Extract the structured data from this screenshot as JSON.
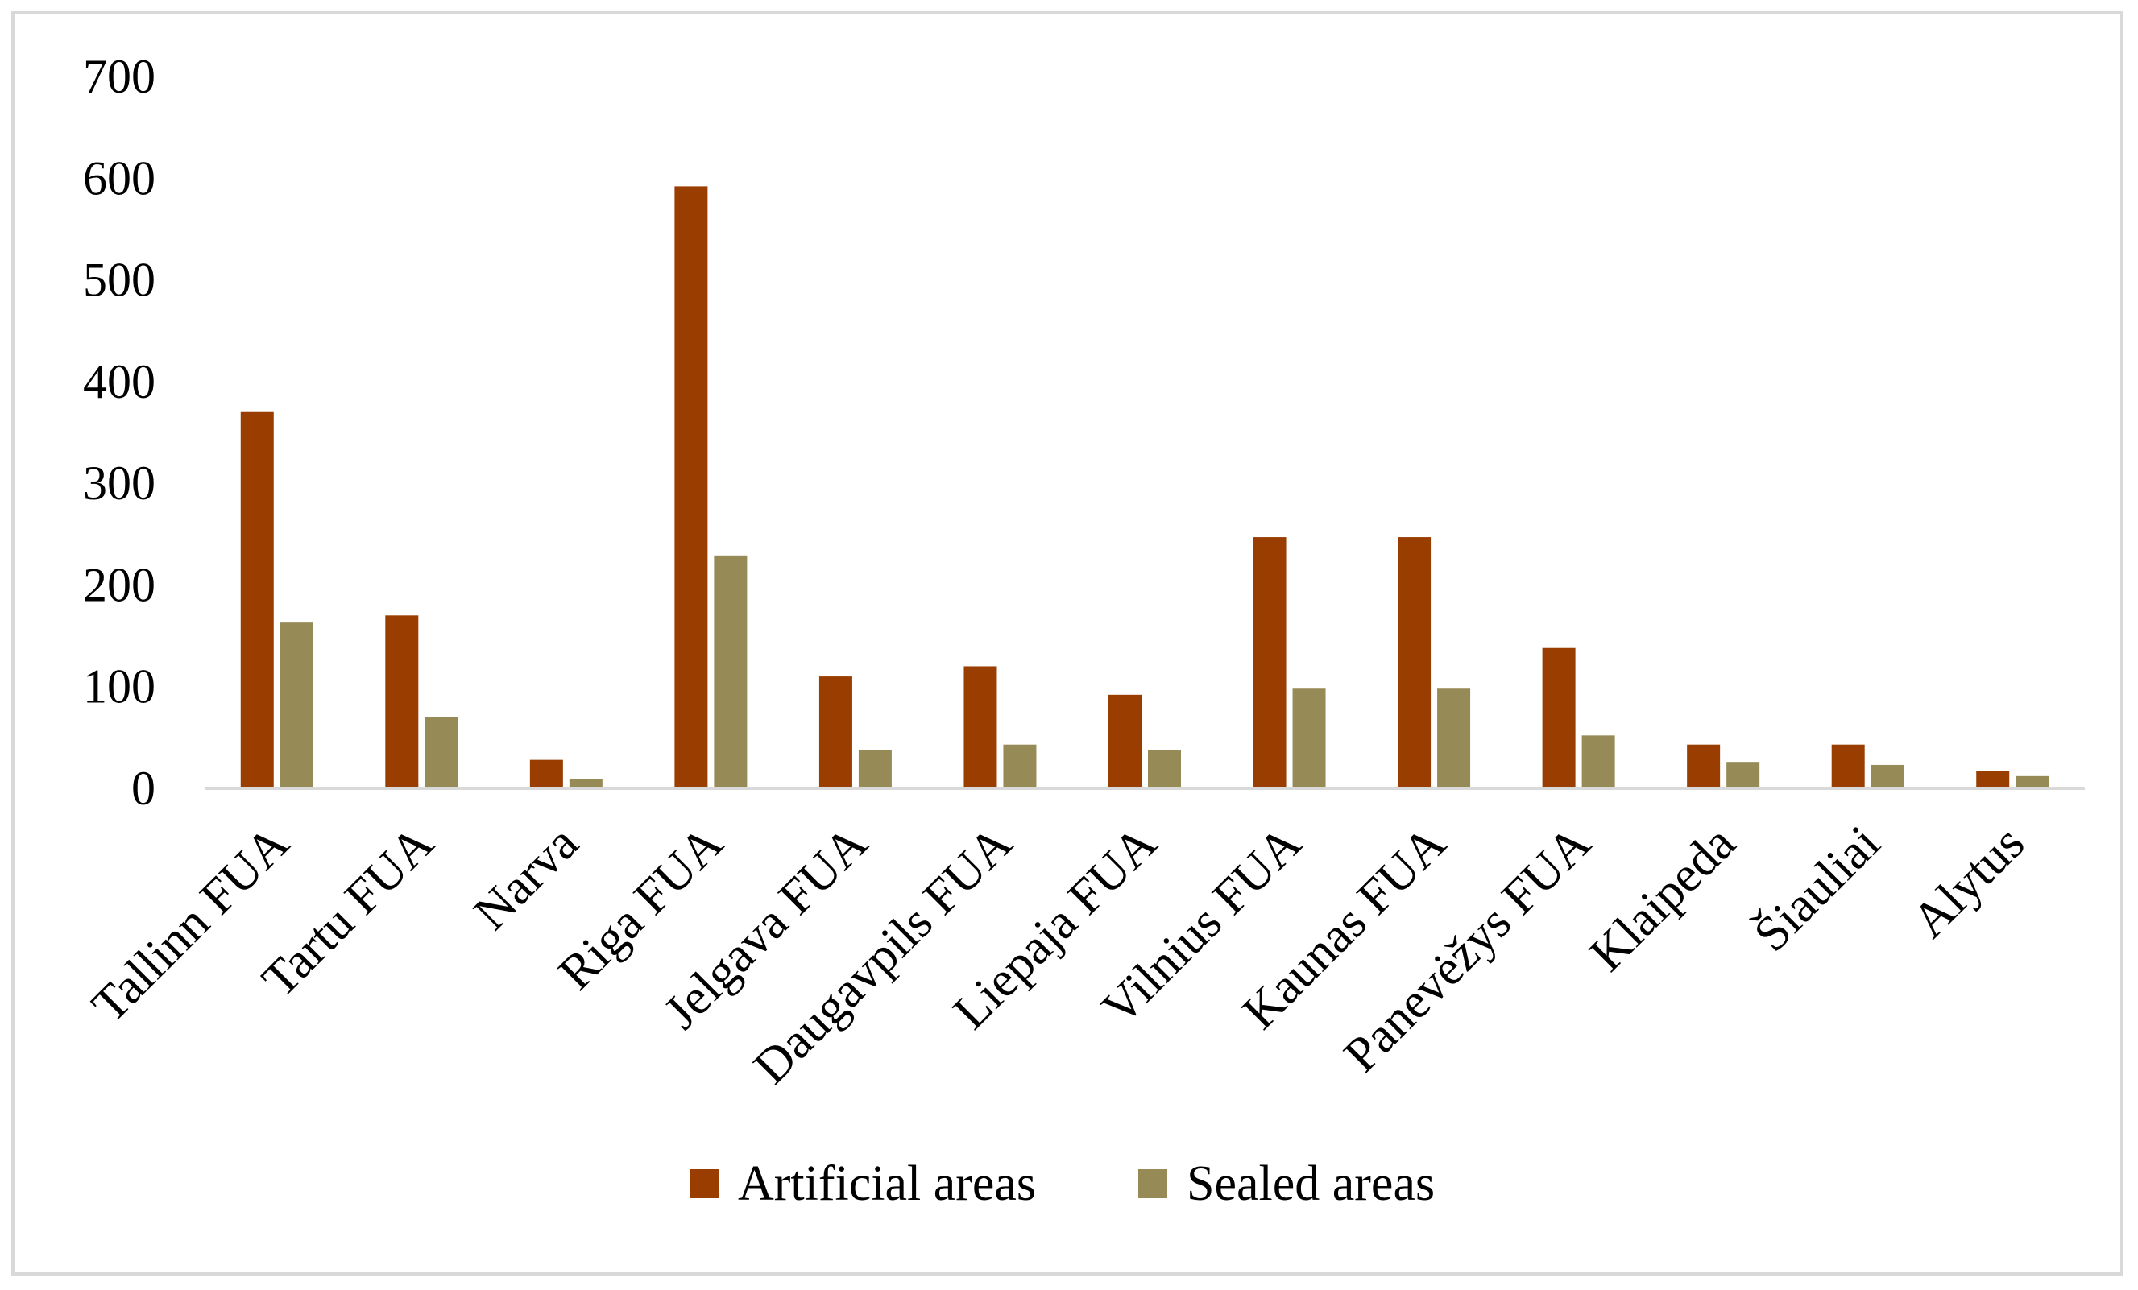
{
  "chart_data": {
    "type": "bar",
    "title": "",
    "xlabel": "",
    "ylabel": "",
    "ylim": [
      0,
      700
    ],
    "yticks": [
      0,
      100,
      200,
      300,
      400,
      500,
      600,
      700
    ],
    "grid": false,
    "legend_position": "bottom",
    "categories": [
      "Tallinn FUA",
      "Tartu FUA",
      "Narva",
      "Riga FUA",
      "Jelgava FUA",
      "Daugavpils FUA",
      "Liepaja FUA",
      "Vilnius FUA",
      "Kaunas FUA",
      "Panevėžys FUA",
      "Klaipeda",
      "Šiauliai",
      "Alytus"
    ],
    "series": [
      {
        "name": "Artificial areas",
        "color": "#993d00",
        "values": [
          370,
          170,
          28,
          592,
          110,
          120,
          92,
          247,
          247,
          138,
          43,
          43,
          17
        ]
      },
      {
        "name": "Sealed areas",
        "color": "#968b57",
        "values": [
          163,
          70,
          9,
          229,
          38,
          43,
          38,
          98,
          98,
          52,
          26,
          23,
          12
        ]
      }
    ]
  }
}
